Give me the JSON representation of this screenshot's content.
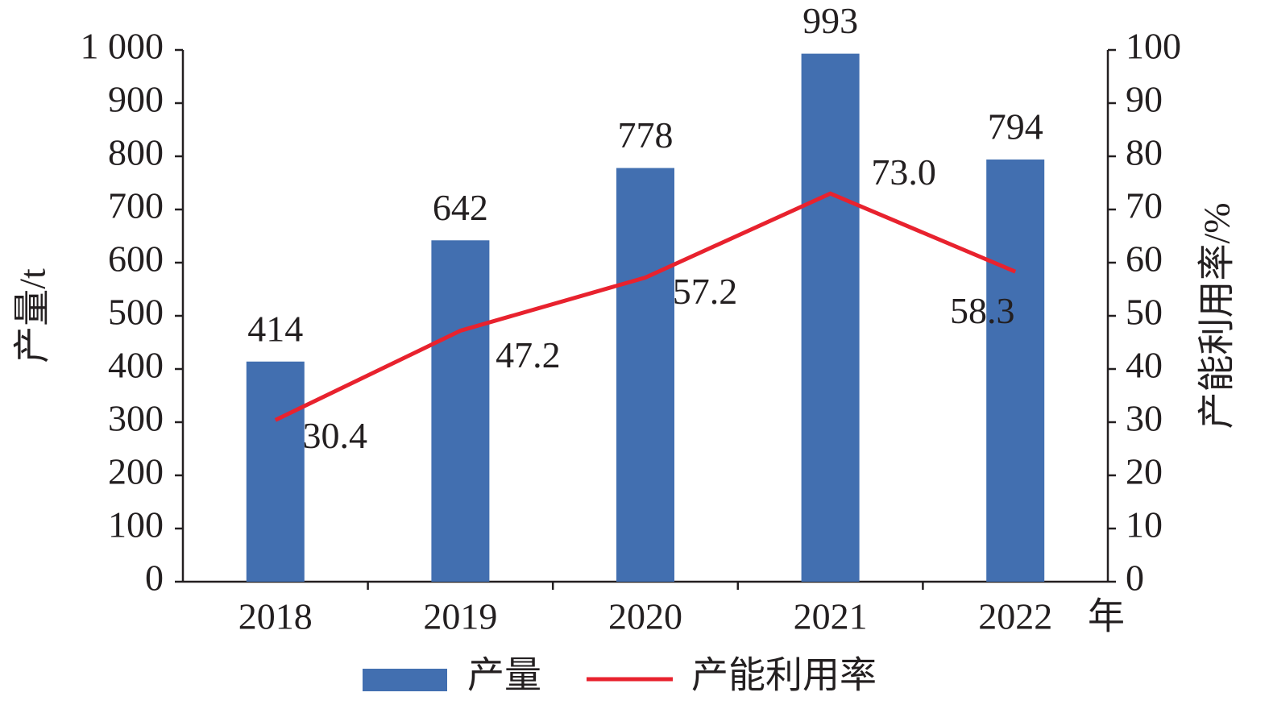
{
  "chart_data": {
    "type": "bar",
    "categories": [
      "2018",
      "2019",
      "2020",
      "2021",
      "2022"
    ],
    "x_label": "年",
    "y_label": "产量/t",
    "y2_label": "产能利用率/%",
    "series": [
      {
        "name": "产量",
        "type": "bar",
        "color": "#426fb0",
        "values": [
          414,
          642,
          778,
          993,
          794
        ]
      },
      {
        "name": "产能利用率",
        "type": "line",
        "axis": "y2",
        "color": "#e8222e",
        "values": [
          30.4,
          47.2,
          57.2,
          73.0,
          58.3
        ],
        "value_labels": [
          "30.4",
          "47.2",
          "57.2",
          "73.0",
          "58.3"
        ]
      }
    ],
    "ylim": [
      0,
      1000
    ],
    "yticks": [
      0,
      100,
      200,
      300,
      400,
      500,
      600,
      700,
      800,
      900,
      {
        "value": 1000,
        "label": "1 000"
      }
    ],
    "y2lim": [
      0,
      100
    ],
    "y2ticks": [
      0,
      10,
      20,
      30,
      40,
      50,
      60,
      70,
      80,
      90,
      100
    ],
    "legend": "bottom"
  }
}
